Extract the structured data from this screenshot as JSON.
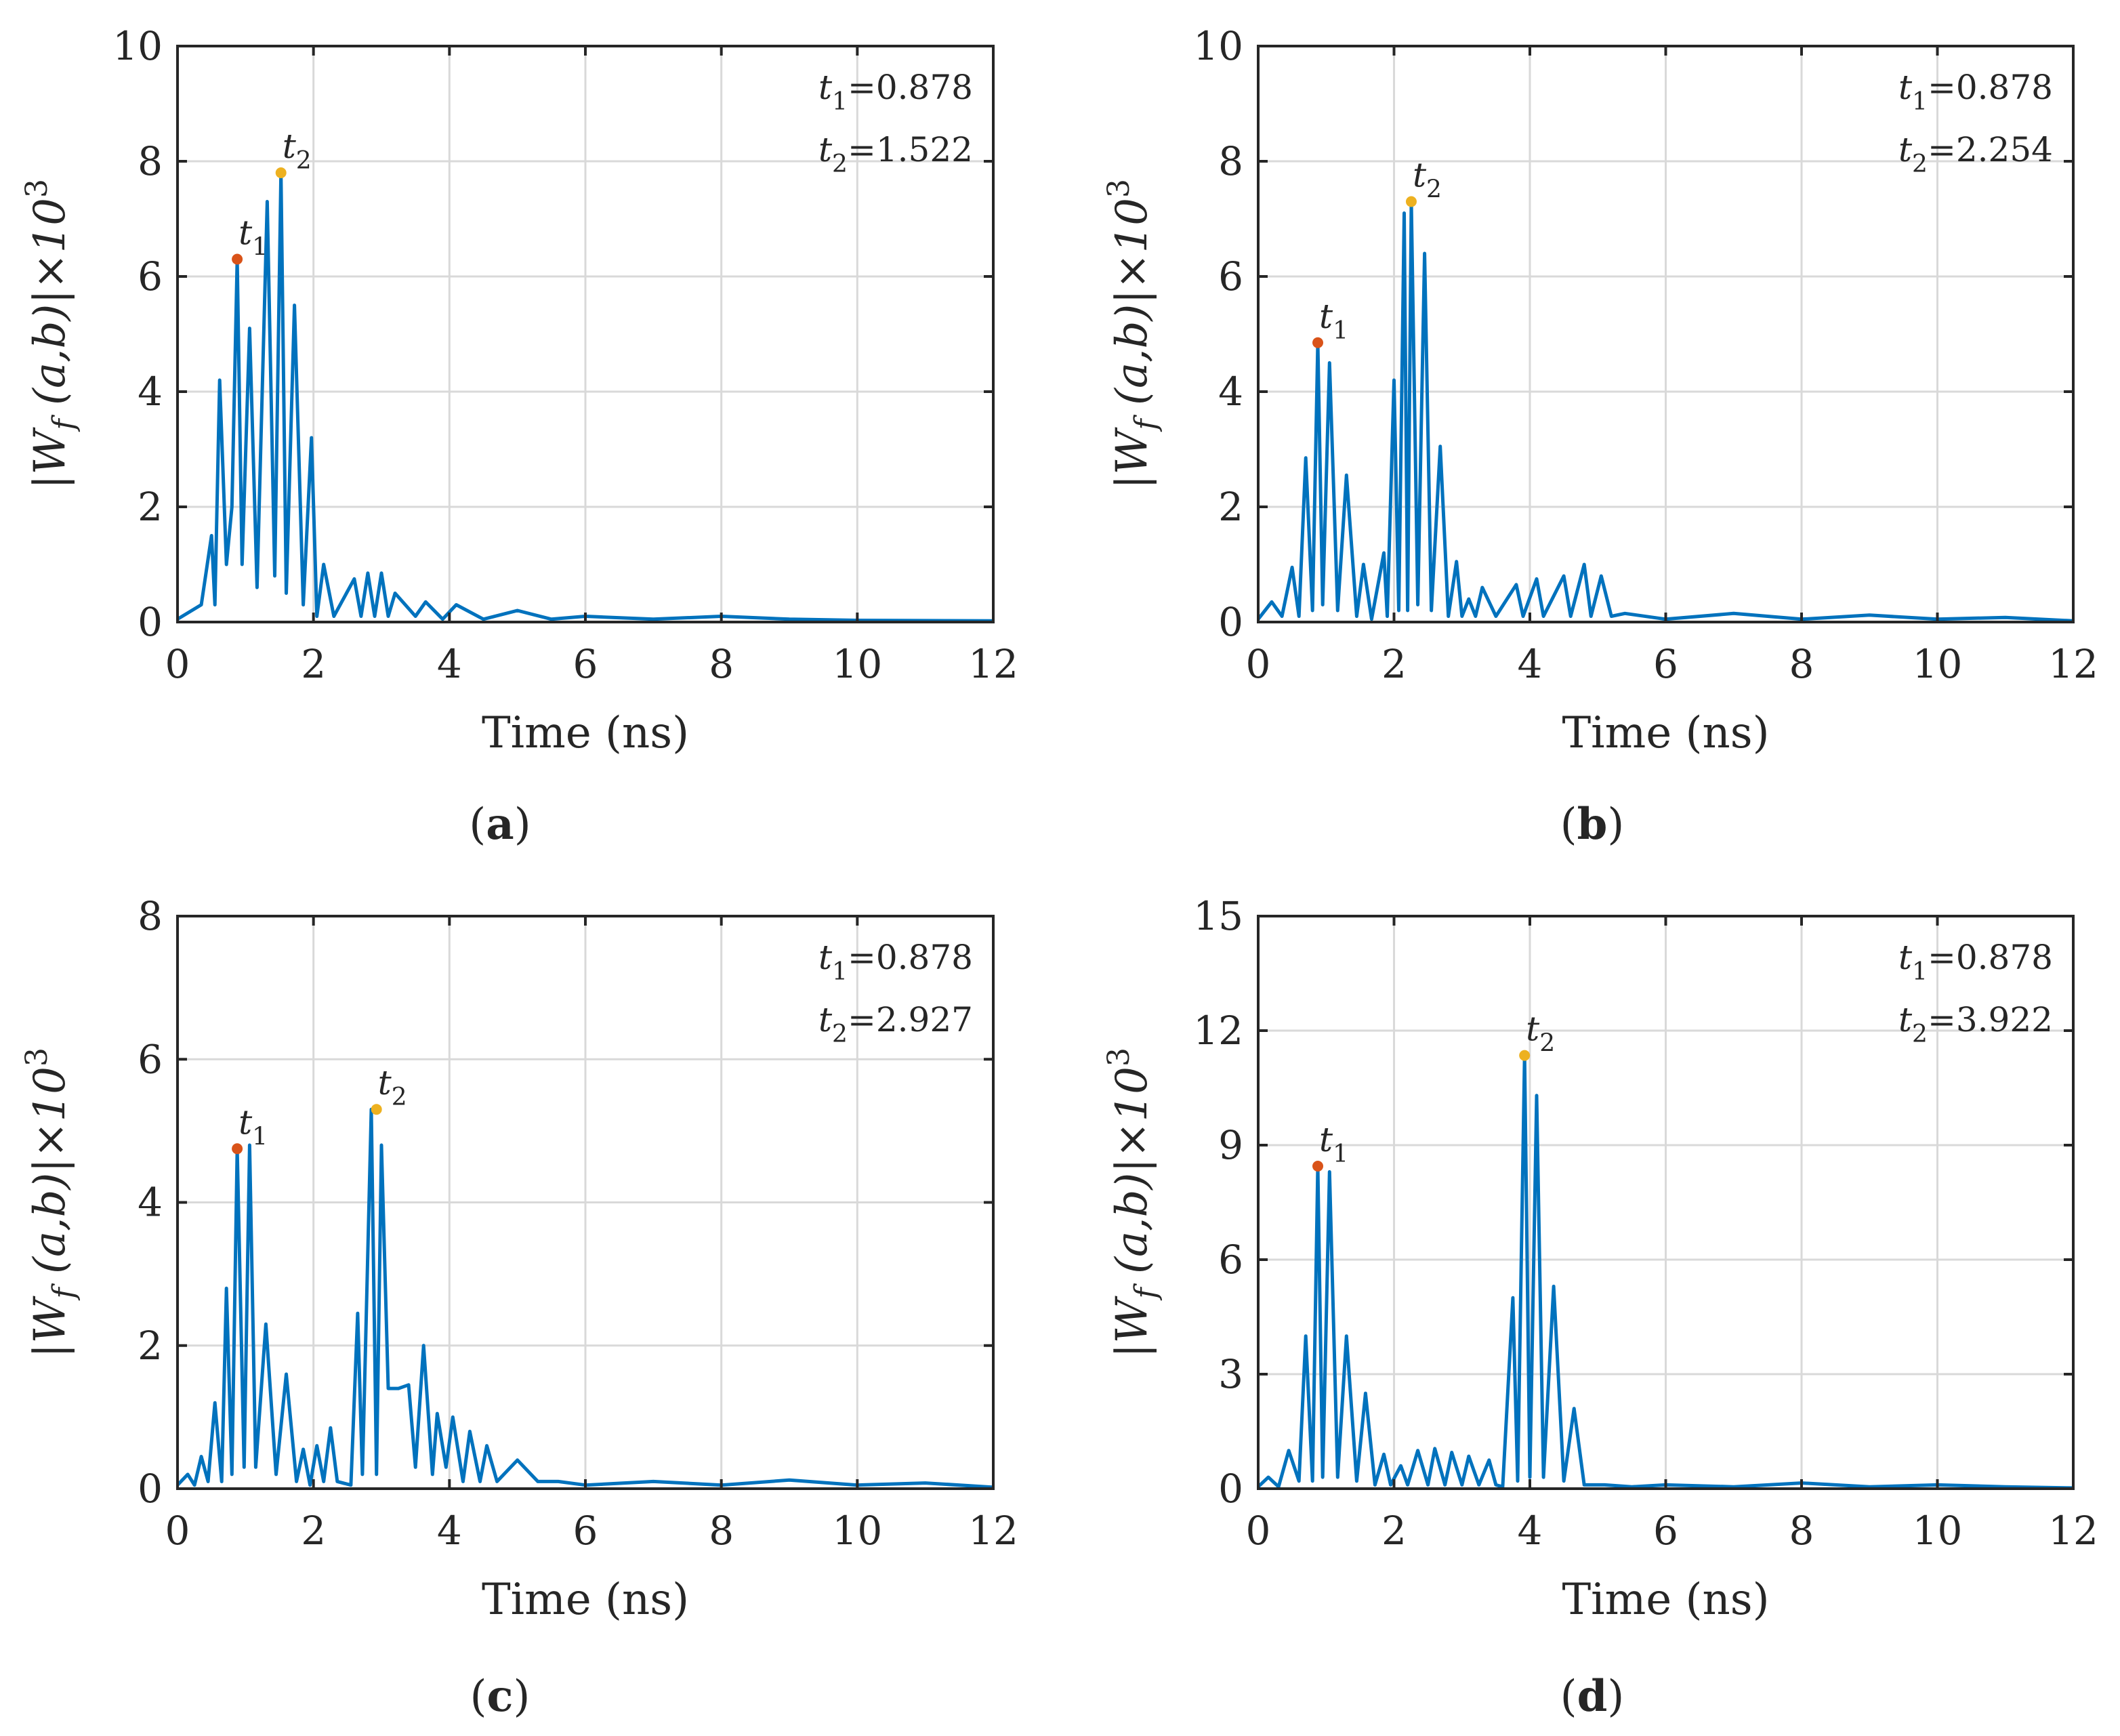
{
  "colors": {
    "line": "#0072BD",
    "t1_marker": "#D95319",
    "t2_marker": "#EDB120",
    "axis": "#262626",
    "grid": "#D9D9D9"
  },
  "chart_data": [
    {
      "id": "a",
      "type": "line",
      "panel_label": "a",
      "xlabel": "Time (ns)",
      "ylabel_prefix": "|W",
      "ylabel_sub": "f",
      "ylabel_mid": "(a,b)|×10",
      "ylabel_sup": "3",
      "xlim": [
        0,
        12
      ],
      "ylim": [
        0,
        10
      ],
      "xticks": [
        0,
        2,
        4,
        6,
        8,
        10,
        12
      ],
      "yticks": [
        0,
        2,
        4,
        6,
        8,
        10
      ],
      "grid": true,
      "markers": [
        {
          "name": "t",
          "sub": "1",
          "time": 0.878,
          "value": 6.3
        },
        {
          "name": "t",
          "sub": "2",
          "time": 1.522,
          "value": 7.8
        }
      ],
      "annotation": [
        {
          "name": "t",
          "sub": "1",
          "text": "=0.878"
        },
        {
          "name": "t",
          "sub": "2",
          "text": "=1.522"
        }
      ],
      "series": [
        {
          "name": "|Wf(a,b)|",
          "x": [
            0,
            0.35,
            0.5,
            0.55,
            0.62,
            0.72,
            0.8,
            0.878,
            0.95,
            1.06,
            1.17,
            1.32,
            1.43,
            1.522,
            1.6,
            1.72,
            1.85,
            1.97,
            2.05,
            2.15,
            2.3,
            2.6,
            2.7,
            2.8,
            2.9,
            3.0,
            3.1,
            3.2,
            3.5,
            3.65,
            3.9,
            4.1,
            4.5,
            5.0,
            5.5,
            6.0,
            7.0,
            8.0,
            9.0,
            10.0,
            12.0
          ],
          "y": [
            0.05,
            0.3,
            1.5,
            0.3,
            4.2,
            1.0,
            2.0,
            6.3,
            1.0,
            5.1,
            0.6,
            7.3,
            0.8,
            7.8,
            0.5,
            5.5,
            0.3,
            3.2,
            0.1,
            1.0,
            0.1,
            0.75,
            0.1,
            0.85,
            0.1,
            0.85,
            0.1,
            0.5,
            0.1,
            0.35,
            0.05,
            0.3,
            0.05,
            0.2,
            0.05,
            0.1,
            0.05,
            0.1,
            0.05,
            0.03,
            0.02
          ]
        }
      ]
    },
    {
      "id": "b",
      "type": "line",
      "panel_label": "b",
      "xlabel": "Time (ns)",
      "ylabel_prefix": "|W",
      "ylabel_sub": "f",
      "ylabel_mid": "(a,b)|×10",
      "ylabel_sup": "3",
      "xlim": [
        0,
        12
      ],
      "ylim": [
        0,
        10
      ],
      "xticks": [
        0,
        2,
        4,
        6,
        8,
        10,
        12
      ],
      "yticks": [
        0,
        2,
        4,
        6,
        8,
        10
      ],
      "grid": true,
      "markers": [
        {
          "name": "t",
          "sub": "1",
          "time": 0.878,
          "value": 4.85
        },
        {
          "name": "t",
          "sub": "2",
          "time": 2.254,
          "value": 7.3
        }
      ],
      "annotation": [
        {
          "name": "t",
          "sub": "1",
          "text": "=0.878"
        },
        {
          "name": "t",
          "sub": "2",
          "text": "=2.254"
        }
      ],
      "series": [
        {
          "name": "|Wf(a,b)|",
          "x": [
            0,
            0.2,
            0.35,
            0.5,
            0.6,
            0.7,
            0.8,
            0.878,
            0.95,
            1.05,
            1.17,
            1.3,
            1.45,
            1.55,
            1.67,
            1.85,
            1.9,
            2.0,
            2.07,
            2.15,
            2.2,
            2.254,
            2.35,
            2.45,
            2.55,
            2.68,
            2.8,
            2.92,
            3.0,
            3.1,
            3.2,
            3.3,
            3.5,
            3.8,
            3.9,
            4.1,
            4.2,
            4.5,
            4.6,
            4.8,
            4.9,
            5.05,
            5.2,
            5.4,
            6.0,
            7.0,
            8.0,
            9.0,
            10.0,
            11.0,
            12.0
          ],
          "y": [
            0.05,
            0.35,
            0.1,
            0.95,
            0.1,
            2.85,
            0.2,
            4.85,
            0.3,
            4.5,
            0.2,
            2.55,
            0.1,
            1.0,
            0.05,
            1.2,
            0.1,
            4.2,
            0.2,
            7.1,
            0.2,
            7.3,
            0.3,
            6.4,
            0.2,
            3.05,
            0.1,
            1.05,
            0.1,
            0.4,
            0.1,
            0.6,
            0.1,
            0.65,
            0.1,
            0.75,
            0.1,
            0.8,
            0.1,
            1.0,
            0.1,
            0.8,
            0.1,
            0.15,
            0.05,
            0.15,
            0.05,
            0.12,
            0.05,
            0.08,
            0.02
          ]
        }
      ]
    },
    {
      "id": "c",
      "type": "line",
      "panel_label": "c",
      "xlabel": "Time (ns)",
      "ylabel_prefix": "|W",
      "ylabel_sub": "f",
      "ylabel_mid": "(a,b)|×10",
      "ylabel_sup": "3",
      "xlim": [
        0,
        12
      ],
      "ylim": [
        0,
        8
      ],
      "xticks": [
        0,
        2,
        4,
        6,
        8,
        10,
        12
      ],
      "yticks": [
        0,
        2,
        4,
        6,
        8
      ],
      "grid": true,
      "markers": [
        {
          "name": "t",
          "sub": "1",
          "time": 0.878,
          "value": 4.75
        },
        {
          "name": "t",
          "sub": "2",
          "time": 2.927,
          "value": 5.3
        }
      ],
      "annotation": [
        {
          "name": "t",
          "sub": "1",
          "text": "=0.878"
        },
        {
          "name": "t",
          "sub": "2",
          "text": "=2.927"
        }
      ],
      "series": [
        {
          "name": "|Wf(a,b)|",
          "x": [
            0,
            0.15,
            0.25,
            0.35,
            0.45,
            0.55,
            0.65,
            0.72,
            0.8,
            0.878,
            0.98,
            1.06,
            1.15,
            1.3,
            1.45,
            1.6,
            1.75,
            1.85,
            1.95,
            2.05,
            2.15,
            2.25,
            2.35,
            2.55,
            2.65,
            2.72,
            2.85,
            2.927,
            3.0,
            3.1,
            3.25,
            3.4,
            3.5,
            3.62,
            3.75,
            3.82,
            3.95,
            4.05,
            4.2,
            4.3,
            4.45,
            4.55,
            4.7,
            5.0,
            5.3,
            5.6,
            6.0,
            7.0,
            8.0,
            9.0,
            10.0,
            11.0,
            12.0
          ],
          "y": [
            0.05,
            0.2,
            0.05,
            0.45,
            0.1,
            1.2,
            0.1,
            2.8,
            0.2,
            4.75,
            0.3,
            4.8,
            0.3,
            2.3,
            0.2,
            1.6,
            0.1,
            0.55,
            0.05,
            0.6,
            0.1,
            0.85,
            0.1,
            0.05,
            2.45,
            0.2,
            5.3,
            0.2,
            4.8,
            1.4,
            1.4,
            1.45,
            0.3,
            2.0,
            0.2,
            1.05,
            0.3,
            1.0,
            0.1,
            0.8,
            0.1,
            0.6,
            0.1,
            0.4,
            0.1,
            0.1,
            0.05,
            0.1,
            0.05,
            0.12,
            0.05,
            0.08,
            0.02
          ]
        }
      ]
    },
    {
      "id": "d",
      "type": "line",
      "panel_label": "d",
      "xlabel": "Time (ns)",
      "ylabel_prefix": "|W",
      "ylabel_sub": "f",
      "ylabel_mid": "(a,b)|×10",
      "ylabel_sup": "3",
      "xlim": [
        0,
        12
      ],
      "ylim": [
        0,
        15
      ],
      "xticks": [
        0,
        2,
        4,
        6,
        8,
        10,
        12
      ],
      "yticks": [
        0,
        3,
        6,
        9,
        12,
        15
      ],
      "grid": true,
      "markers": [
        {
          "name": "t",
          "sub": "1",
          "time": 0.878,
          "value": 8.45
        },
        {
          "name": "t",
          "sub": "2",
          "time": 3.922,
          "value": 11.35
        }
      ],
      "annotation": [
        {
          "name": "t",
          "sub": "1",
          "text": "=0.878"
        },
        {
          "name": "t",
          "sub": "2",
          "text": "=3.922"
        }
      ],
      "series": [
        {
          "name": "|Wf(a,b)|",
          "x": [
            0,
            0.15,
            0.3,
            0.45,
            0.6,
            0.7,
            0.8,
            0.878,
            0.95,
            1.05,
            1.17,
            1.3,
            1.45,
            1.58,
            1.72,
            1.85,
            1.95,
            2.1,
            2.2,
            2.35,
            2.5,
            2.6,
            2.75,
            2.85,
            3.0,
            3.1,
            3.25,
            3.4,
            3.5,
            3.6,
            3.75,
            3.82,
            3.922,
            4.0,
            4.1,
            4.2,
            4.35,
            4.5,
            4.65,
            4.8,
            5.1,
            5.5,
            6.0,
            7.0,
            8.0,
            9.0,
            10.0,
            11.0,
            12.0
          ],
          "y": [
            0.05,
            0.3,
            0.05,
            1.0,
            0.2,
            4.0,
            0.2,
            8.45,
            0.3,
            8.3,
            0.3,
            4.0,
            0.2,
            2.5,
            0.1,
            0.9,
            0.1,
            0.6,
            0.1,
            1.0,
            0.1,
            1.05,
            0.1,
            0.95,
            0.1,
            0.85,
            0.1,
            0.75,
            0.1,
            0.05,
            5.0,
            0.2,
            11.35,
            0.3,
            10.3,
            0.3,
            5.3,
            0.2,
            2.1,
            0.1,
            0.1,
            0.05,
            0.1,
            0.05,
            0.15,
            0.05,
            0.1,
            0.05,
            0.02
          ]
        }
      ]
    }
  ]
}
